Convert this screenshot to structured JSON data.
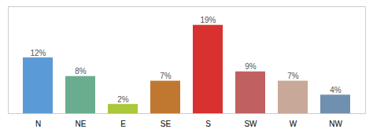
{
  "chart_data": {
    "type": "bar",
    "categories": [
      "N",
      "NE",
      "E",
      "SE",
      "S",
      "SW",
      "W",
      "NW"
    ],
    "values": [
      12,
      8,
      2,
      7,
      19,
      9,
      7,
      4
    ],
    "value_labels": [
      "12%",
      "8%",
      "2%",
      "7%",
      "19%",
      "9%",
      "7%",
      "4%"
    ],
    "colors": [
      "#5B9BD5",
      "#6AAD8E",
      "#A9C83A",
      "#C07830",
      "#D93030",
      "#C06060",
      "#C8A898",
      "#7090B0"
    ],
    "ylim": [
      0,
      23
    ],
    "yticks": [],
    "grid": false,
    "data_labels": true,
    "tick_labels": "x"
  }
}
